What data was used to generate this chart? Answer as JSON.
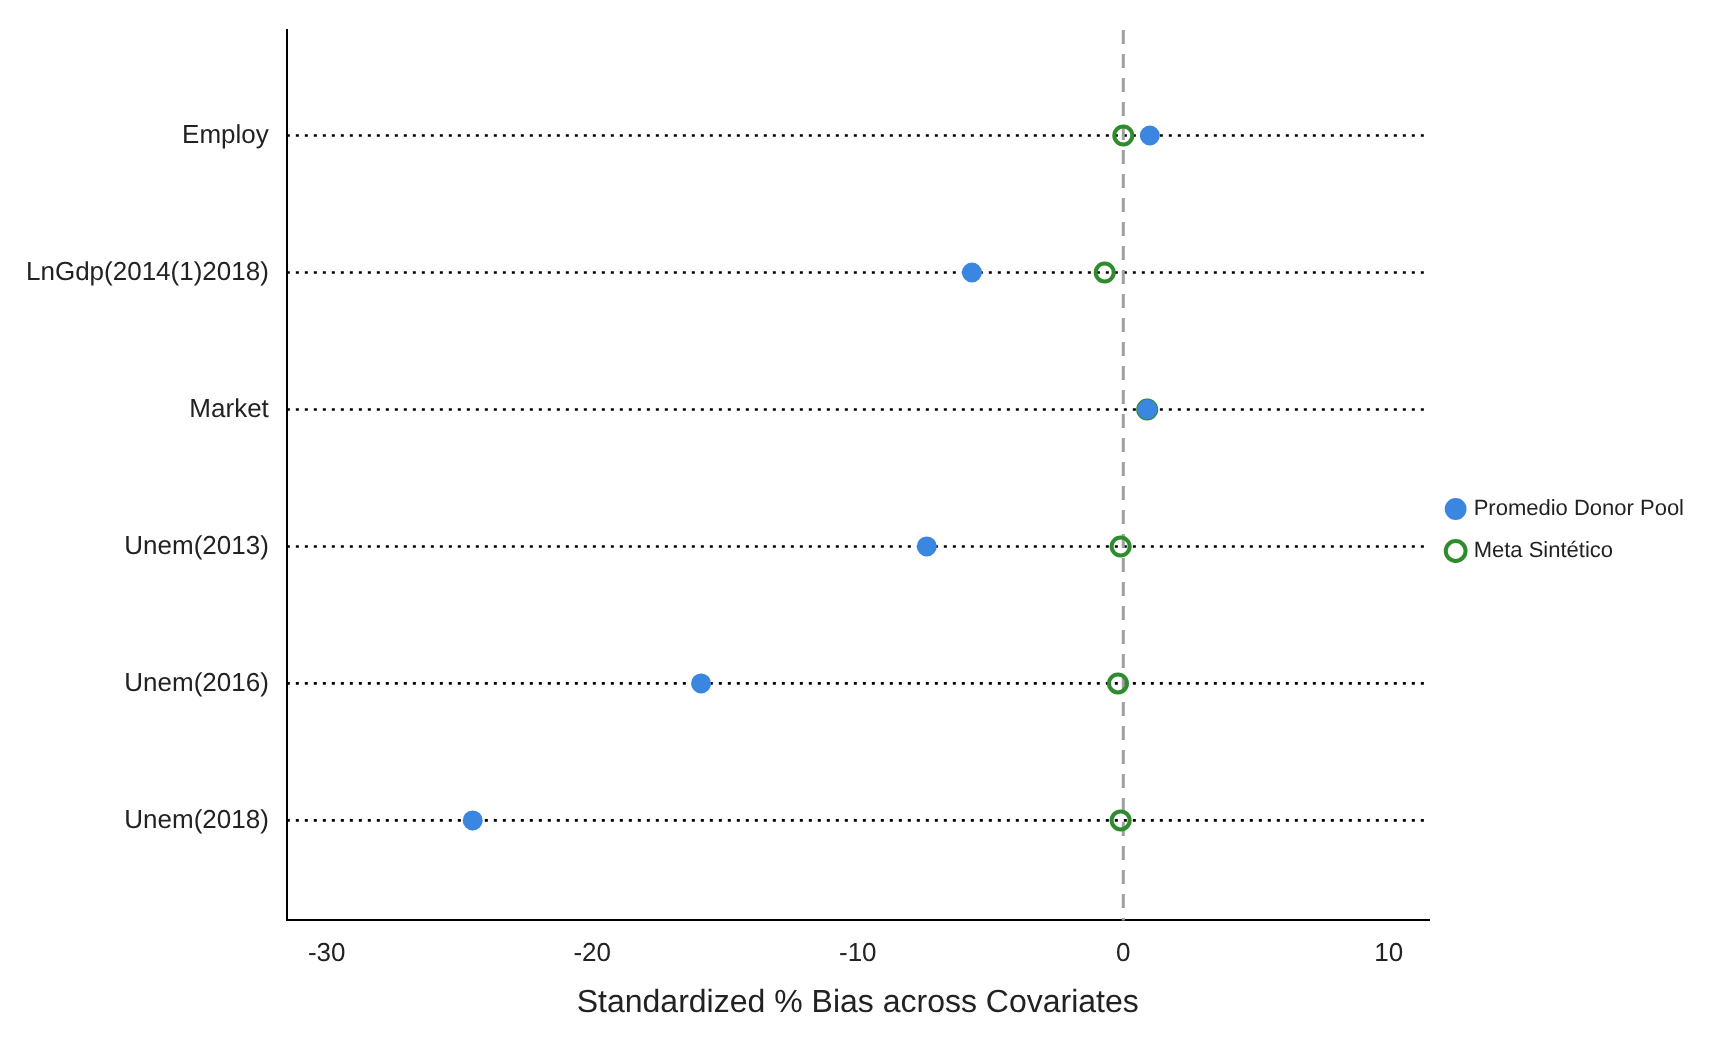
{
  "chart_data": {
    "type": "scatter",
    "xlabel": "Standardized % Bias across Covariates",
    "categories": [
      "Employ",
      "LnGdp(2014(1)2018)",
      "Market",
      "Unem(2013)",
      "Unem(2016)",
      "Unem(2018)"
    ],
    "orientation": "horizontal",
    "series": [
      {
        "name": "Promedio Donor Pool",
        "color": "#3a86e0",
        "values": [
          1.0,
          -5.7,
          0.9,
          -7.4,
          -15.9,
          -24.5
        ]
      },
      {
        "name": "Meta Sintético",
        "color": "#2e8b2e",
        "values": [
          0.0,
          -0.7,
          0.9,
          -0.1,
          -0.2,
          -0.1
        ]
      }
    ],
    "xlim": [
      -31.5,
      11.5
    ],
    "xticks": [
      -30,
      -20,
      -10,
      0,
      10
    ],
    "ref_lines": [
      {
        "axis": "x",
        "value": 0,
        "color": "#a0a0a0",
        "line_style": "dashed"
      }
    ],
    "grid": "y",
    "legend": "right",
    "marker": "circle"
  }
}
